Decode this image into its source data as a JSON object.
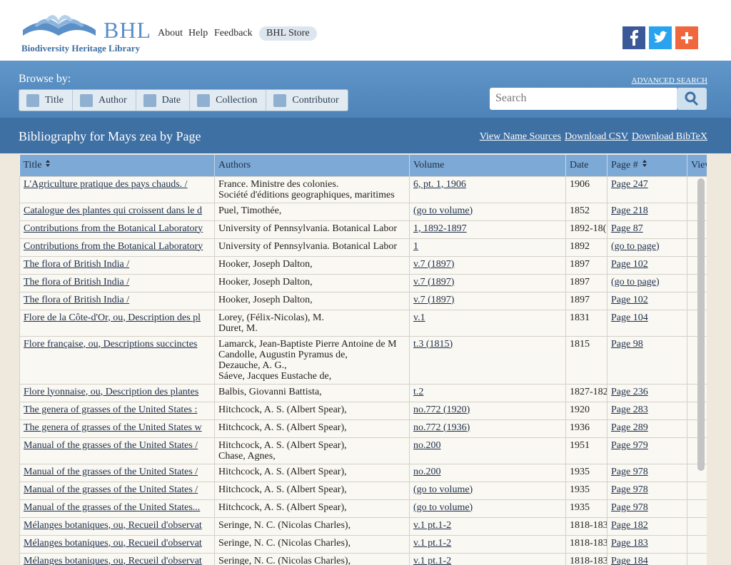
{
  "header": {
    "logo_title": "BHL",
    "logo_subtitle": "Biodiversity Heritage Library",
    "nav": [
      "About",
      "Help",
      "Feedback",
      "BHL Store"
    ]
  },
  "browse": {
    "label": "Browse by:",
    "buttons": [
      "Title",
      "Author",
      "Date",
      "Collection",
      "Contributor"
    ],
    "advanced_search": "ADVANCED SEARCH",
    "search_placeholder": "Search"
  },
  "bibliography": {
    "title": "Bibliography for Mays zea by Page",
    "links": [
      "View Name Sources",
      "Download CSV",
      "Download BibTeX"
    ],
    "columns": [
      "Title",
      "Authors",
      "Volume",
      "Date",
      "Page #",
      "View"
    ],
    "rows": [
      {
        "title": "L'Agriculture pratique des pays chauds. /",
        "authors": [
          "France. Ministre des colonies.",
          "Société d'éditions geographiques, maritimes"
        ],
        "volume": "6, pt. 1, 1906",
        "date": "1906",
        "page": "Page 247"
      },
      {
        "title": "Catalogue des plantes qui croissent dans le d",
        "authors": [
          "Puel, Timothée,"
        ],
        "volume": "(go to volume)",
        "date": "1852",
        "page": "Page 218"
      },
      {
        "title": "Contributions from the Botanical Laboratory",
        "authors": [
          "University of Pennsylvania. Botanical Labor"
        ],
        "volume": "1, 1892-1897",
        "date": "1892-18(",
        "page": "Page 87"
      },
      {
        "title": "Contributions from the Botanical Laboratory",
        "authors": [
          "University of Pennsylvania. Botanical Labor"
        ],
        "volume": "1",
        "date": "1892",
        "page": "(go to page)"
      },
      {
        "title": "The flora of British India /",
        "authors": [
          "Hooker, Joseph Dalton,"
        ],
        "volume": "v.7 (1897)",
        "date": "1897",
        "page": "Page 102"
      },
      {
        "title": "The flora of British India /",
        "authors": [
          "Hooker, Joseph Dalton,"
        ],
        "volume": "v.7 (1897)",
        "date": "1897",
        "page": "(go to page)"
      },
      {
        "title": "The flora of British India /",
        "authors": [
          "Hooker, Joseph Dalton,"
        ],
        "volume": "v.7 (1897)",
        "date": "1897",
        "page": "Page 102"
      },
      {
        "title": "Flore de la Côte-d'Or, ou, Description des pl",
        "authors": [
          "Lorey, (Félix-Nicolas), M.",
          "Duret, M."
        ],
        "volume": "v.1",
        "date": "1831",
        "page": "Page 104"
      },
      {
        "title": "Flore française, ou, Descriptions succinctes",
        "authors": [
          "Lamarck, Jean-Baptiste Pierre Antoine de M",
          "Candolle, Augustin Pyramus de,",
          "Dezauche, A. G.,",
          "Sáeve, Jacques Eustache de,"
        ],
        "volume": "t.3 (1815)",
        "date": "1815",
        "page": "Page 98"
      },
      {
        "title": "Flore lyonnaise, ou, Description des plantes",
        "authors": [
          "Balbis, Giovanni Battista,"
        ],
        "volume": "t.2",
        "date": "1827-182",
        "page": "Page 236"
      },
      {
        "title": "The genera of grasses of the United States :",
        "authors": [
          "Hitchcock, A. S. (Albert Spear),"
        ],
        "volume": "no.772 (1920)",
        "date": "1920",
        "page": "Page 283"
      },
      {
        "title": "The genera of grasses of the United States w",
        "authors": [
          "Hitchcock, A. S. (Albert Spear),"
        ],
        "volume": "no.772 (1936)",
        "date": "1936",
        "page": "Page 289"
      },
      {
        "title": "Manual of the grasses of the United States /",
        "authors": [
          "Hitchcock, A. S. (Albert Spear),",
          "Chase, Agnes,"
        ],
        "volume": "no.200",
        "date": "1951",
        "page": "Page 979"
      },
      {
        "title": "Manual of the grasses of the United States /",
        "authors": [
          "Hitchcock, A. S. (Albert Spear),"
        ],
        "volume": "no.200",
        "date": "1935",
        "page": "Page 978"
      },
      {
        "title": "Manual of the grasses of the United States /",
        "authors": [
          "Hitchcock, A. S. (Albert Spear),"
        ],
        "volume": "(go to volume)",
        "date": "1935",
        "page": "Page 978"
      },
      {
        "title": "Manual of the grasses of the United States...",
        "authors": [
          "Hitchcock, A. S. (Albert Spear),"
        ],
        "volume": "(go to volume)",
        "date": "1935",
        "page": "Page 978"
      },
      {
        "title": "Mélanges botaniques, ou, Recueil d'observat",
        "authors": [
          "Seringe, N. C. (Nicolas Charles),"
        ],
        "volume": "v.1 pt.1-2",
        "date": "1818-183",
        "page": "Page 182"
      },
      {
        "title": "Mélanges botaniques, ou, Recueil d'observat",
        "authors": [
          "Seringe, N. C. (Nicolas Charles),"
        ],
        "volume": "v.1 pt.1-2",
        "date": "1818-183",
        "page": "Page 183"
      },
      {
        "title": "Mélanges botaniques, ou, Recueil d'observat",
        "authors": [
          "Seringe, N. C. (Nicolas Charles),"
        ],
        "volume": "v.1 pt.1-2",
        "date": "1818-183",
        "page": "Page 184"
      }
    ]
  }
}
